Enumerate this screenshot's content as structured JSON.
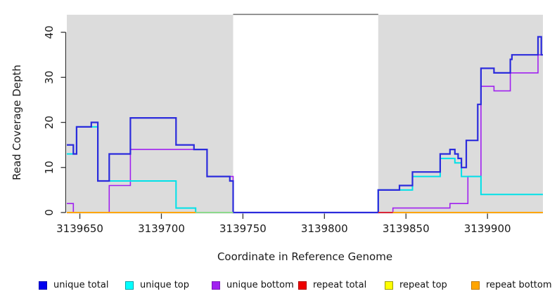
{
  "chart_data": {
    "type": "line",
    "subtype": "step-coverage-plot",
    "title": "",
    "xlabel": "Coordinate in Reference Genome",
    "ylabel": "Read Coverage Depth",
    "xlim": [
      3139642,
      3139934
    ],
    "ylim": [
      0,
      43.9
    ],
    "x_ticks": [
      3139650,
      3139700,
      3139750,
      3139800,
      3139850,
      3139900
    ],
    "y_ticks": [
      0,
      10,
      20,
      30,
      40
    ],
    "grid": false,
    "legend_position": "bottom",
    "shaded_regions": [
      {
        "name": "left-target-region",
        "x0": 3139642,
        "x1": 3139744,
        "color": "#DCDCDC"
      },
      {
        "name": "right-target-region",
        "x0": 3139833,
        "x1": 3139934,
        "color": "#DCDCDC"
      }
    ],
    "gap_top_border": {
      "x0": 3139744,
      "x1": 3139833,
      "color": "#6E6E6E"
    },
    "series": [
      {
        "name": "unique bottom",
        "line_color": "#A020F0",
        "render": "line",
        "width": 1.6,
        "end": 3139934,
        "steps": [
          [
            3139642,
            2
          ],
          [
            3139646,
            0
          ],
          [
            3139668,
            6
          ],
          [
            3139681,
            14
          ],
          [
            3139728,
            8
          ],
          [
            3139744,
            0
          ],
          [
            3139842,
            1
          ],
          [
            3139877,
            2
          ],
          [
            3139888,
            8
          ],
          [
            3139896,
            28
          ],
          [
            3139904,
            27
          ],
          [
            3139914,
            31
          ],
          [
            3139931,
            35
          ]
        ]
      },
      {
        "name": "unique top",
        "line_color": "#00E1E8",
        "render": "line",
        "width": 2,
        "end": 3139934,
        "steps": [
          [
            3139642,
            13
          ],
          [
            3139648,
            19
          ],
          [
            3139661,
            7
          ],
          [
            3139709,
            1
          ],
          [
            3139721,
            0
          ],
          [
            3139833,
            5
          ],
          [
            3139854,
            8
          ],
          [
            3139871,
            12
          ],
          [
            3139880,
            11
          ],
          [
            3139884,
            8
          ],
          [
            3139896,
            4
          ]
        ]
      },
      {
        "name": "unique total",
        "line_color": "#2B2BDC",
        "render": "line",
        "width": 2.2,
        "end": 3139934,
        "steps": [
          [
            3139642,
            15
          ],
          [
            3139646,
            13
          ],
          [
            3139648,
            19
          ],
          [
            3139657,
            20
          ],
          [
            3139661,
            7
          ],
          [
            3139668,
            13
          ],
          [
            3139681,
            21
          ],
          [
            3139709,
            15
          ],
          [
            3139720,
            14
          ],
          [
            3139728,
            8
          ],
          [
            3139742,
            7
          ],
          [
            3139744,
            0
          ],
          [
            3139833,
            5
          ],
          [
            3139846,
            6
          ],
          [
            3139854,
            9
          ],
          [
            3139871,
            13
          ],
          [
            3139877,
            14
          ],
          [
            3139880,
            13
          ],
          [
            3139882,
            12
          ],
          [
            3139884,
            10
          ],
          [
            3139887,
            16
          ],
          [
            3139894,
            24
          ],
          [
            3139896,
            32
          ],
          [
            3139904,
            31
          ],
          [
            3139914,
            34
          ],
          [
            3139915,
            35
          ],
          [
            3139931,
            39
          ],
          [
            3139933,
            35
          ]
        ]
      },
      {
        "name": "repeat total",
        "line_color": "#EE0000",
        "render": "baseline-only",
        "end": 3139934,
        "steps": [
          [
            3139642,
            0
          ]
        ]
      },
      {
        "name": "repeat top",
        "line_color": "#FFFF00",
        "render": "baseline-only",
        "end": 3139934,
        "steps": [
          [
            3139642,
            0
          ]
        ]
      },
      {
        "name": "repeat bottom",
        "line_color": "#FFA500",
        "render": "baseline-only",
        "end": 3139934,
        "steps": [
          [
            3139642,
            0
          ]
        ]
      }
    ],
    "baseline_segments": [
      {
        "x0": 3139642,
        "x1": 3139721,
        "color": "#FFA500"
      },
      {
        "x0": 3139721,
        "x1": 3139744,
        "color": "#8CD98C"
      },
      {
        "x0": 3139833,
        "x1": 3139842,
        "color": "#D92638"
      },
      {
        "x0": 3139842,
        "x1": 3139934,
        "color": "#FFA500"
      }
    ]
  },
  "legend": {
    "items": [
      {
        "label": "unique total",
        "fill": "#0000EE",
        "border": "#0000B0"
      },
      {
        "label": "unique top",
        "fill": "#00FFFF",
        "border": "#00A0A8"
      },
      {
        "label": "unique bottom",
        "fill": "#A020F0",
        "border": "#7A18B8"
      },
      {
        "label": "repeat total",
        "fill": "#EE0000",
        "border": "#B00000"
      },
      {
        "label": "repeat top",
        "fill": "#FFFF00",
        "border": "#9A9A00"
      },
      {
        "label": "repeat bottom",
        "fill": "#FFA500",
        "border": "#C07800"
      }
    ]
  },
  "colors": {
    "background": "#FFFFFF",
    "shading": "#DCDCDC",
    "axis": "#333333",
    "text": "#1A1A1A"
  }
}
